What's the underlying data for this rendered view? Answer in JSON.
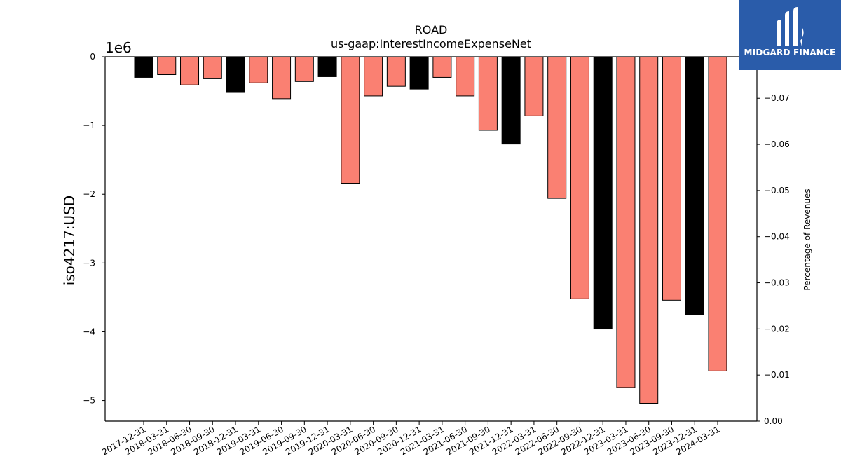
{
  "chart_data": {
    "type": "bar",
    "title": "ROAD",
    "subtitle": "us-gaap:InterestIncomeExpenseNet",
    "ylabel": "iso4217:USD",
    "y2label": "Percentage of Revenues",
    "offset_label": "1e6",
    "ylim": [
      -5.3,
      0
    ],
    "y2lim": [
      0.0,
      -0.079
    ],
    "yticks": [
      {
        "v": 0,
        "label": "0"
      },
      {
        "v": -1,
        "label": "−1"
      },
      {
        "v": -2,
        "label": "−2"
      },
      {
        "v": -3,
        "label": "−3"
      },
      {
        "v": -4,
        "label": "−4"
      },
      {
        "v": -5,
        "label": "−5"
      }
    ],
    "y2ticks": [
      {
        "v": 0.0,
        "label": "0.00"
      },
      {
        "v": -0.01,
        "label": "−0.01"
      },
      {
        "v": -0.02,
        "label": "−0.02"
      },
      {
        "v": -0.03,
        "label": "−0.03"
      },
      {
        "v": -0.04,
        "label": "−0.04"
      },
      {
        "v": -0.05,
        "label": "−0.05"
      },
      {
        "v": -0.06,
        "label": "−0.06"
      },
      {
        "v": -0.07,
        "label": "−0.07"
      }
    ],
    "categories": [
      "2017-12-31",
      "2018-03-31",
      "2018-06-30",
      "2018-09-30",
      "2018-12-31",
      "2019-03-31",
      "2019-06-30",
      "2019-09-30",
      "2019-12-31",
      "2020-03-31",
      "2020-06-30",
      "2020-09-30",
      "2020-12-31",
      "2021-03-31",
      "2021-06-30",
      "2021-09-30",
      "2021-12-31",
      "2022-03-31",
      "2022-06-30",
      "2022-09-30",
      "2022-12-31",
      "2023-03-31",
      "2023-06-30",
      "2023-09-30",
      "2023-12-31",
      "2024-03-31"
    ],
    "values": [
      -0.3,
      -0.26,
      -0.41,
      -0.32,
      -0.52,
      -0.38,
      -0.61,
      -0.36,
      -0.29,
      -1.84,
      -0.57,
      -0.43,
      -0.47,
      -0.3,
      -0.57,
      -1.07,
      -1.27,
      -0.86,
      -2.06,
      -3.52,
      -3.96,
      -4.81,
      -5.04,
      -3.54,
      -3.75,
      -4.57
    ],
    "colors": [
      "#000000",
      "#fa8072",
      "#fa8072",
      "#fa8072",
      "#000000",
      "#fa8072",
      "#fa8072",
      "#fa8072",
      "#000000",
      "#fa8072",
      "#fa8072",
      "#fa8072",
      "#000000",
      "#fa8072",
      "#fa8072",
      "#fa8072",
      "#000000",
      "#fa8072",
      "#fa8072",
      "#fa8072",
      "#000000",
      "#fa8072",
      "#fa8072",
      "#fa8072",
      "#000000",
      "#fa8072"
    ],
    "grid": false
  },
  "logo": {
    "text": "MIDGARD FINANCE",
    "color": "#2a5caa"
  }
}
